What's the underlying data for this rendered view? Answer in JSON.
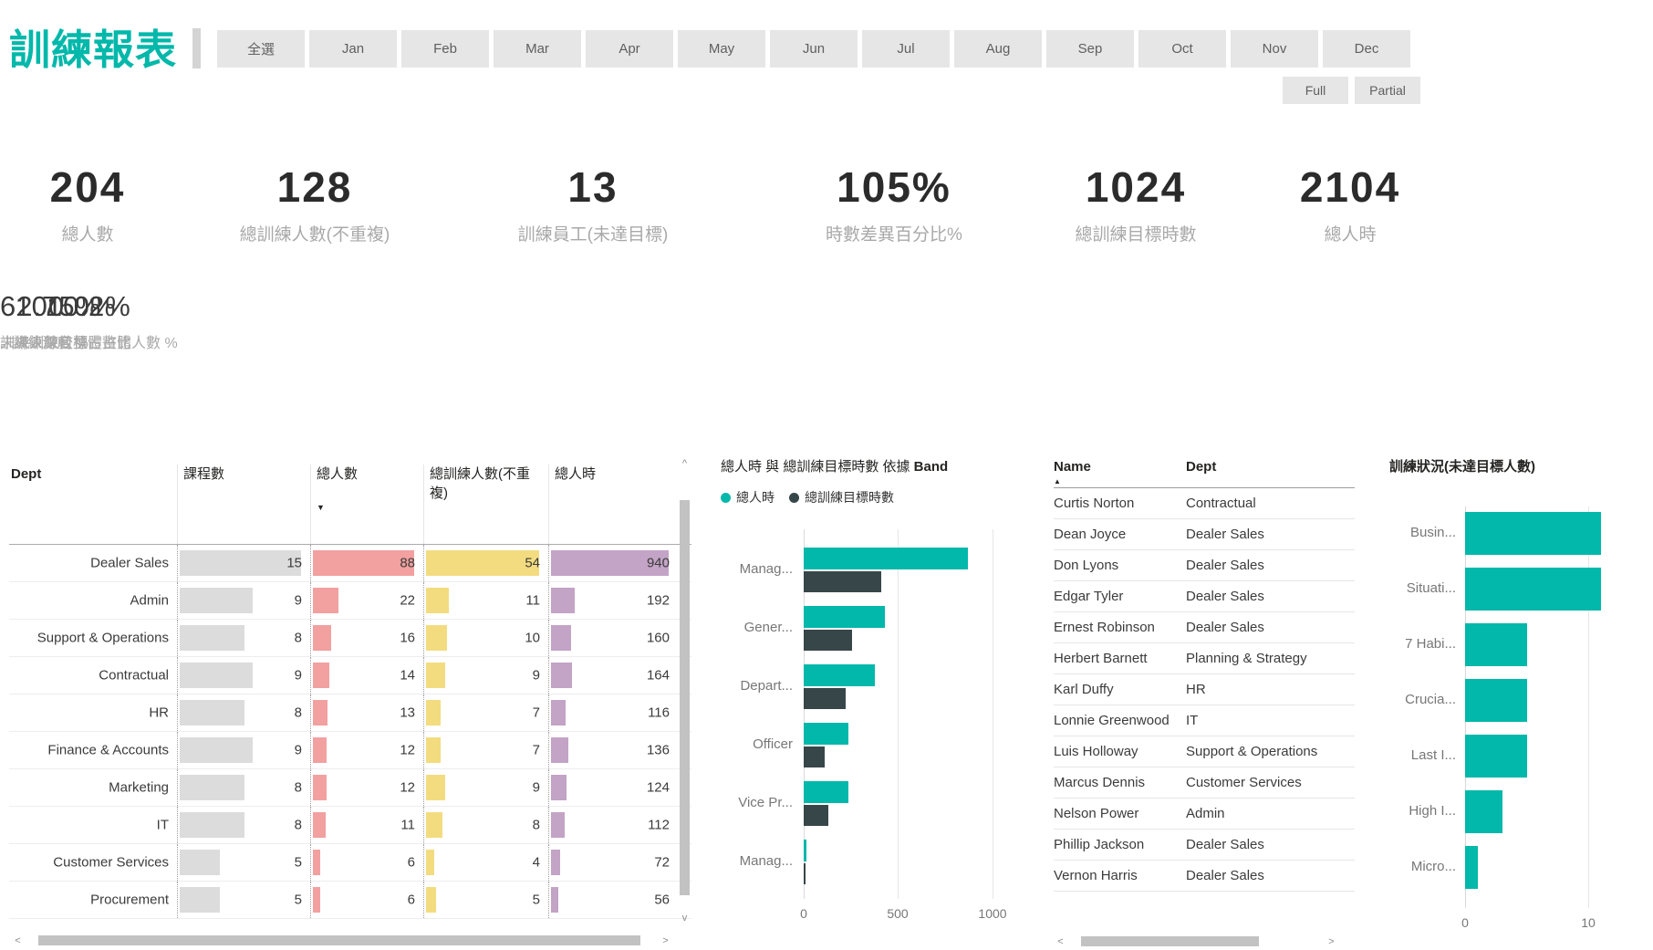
{
  "title": "訓練報表",
  "month_slicer": [
    "全選",
    "Jan",
    "Feb",
    "Mar",
    "Apr",
    "May",
    "Jun",
    "Jul",
    "Aug",
    "Sep",
    "Oct",
    "Nov",
    "Dec"
  ],
  "view_toggle": [
    "Full",
    "Partial"
  ],
  "kpis": [
    {
      "value": "204",
      "label": "總人數"
    },
    {
      "value": "128",
      "label": "總訓練人數(不重複)"
    },
    {
      "value": "13",
      "label": "訓練員工(未達目標)"
    },
    {
      "value": "105%",
      "label": "時數差異百分比%"
    },
    {
      "value": "1024",
      "label": "總訓練目標時數"
    },
    {
      "value": "2104",
      "label": "總人時"
    }
  ],
  "kpis_secondary": [
    {
      "value": "100.0%",
      "label": "訓練人數較整體占比"
    },
    {
      "value": "62.75%",
      "label": "訓練深度 %"
    },
    {
      "value": "10.2%",
      "label": "未來訓練目標占整體人數 %"
    }
  ],
  "dept_table": {
    "columns": [
      "Dept",
      "課程數",
      "總人數",
      "總訓練人數(不重複)",
      "總人時"
    ],
    "sort": {
      "column": "總人數",
      "direction": "desc"
    },
    "rows": [
      {
        "dept": "Dealer Sales",
        "courses": 15,
        "people": 88,
        "trained": 54,
        "hours": 940
      },
      {
        "dept": "Admin",
        "courses": 9,
        "people": 22,
        "trained": 11,
        "hours": 192
      },
      {
        "dept": "Support & Operations",
        "courses": 8,
        "people": 16,
        "trained": 10,
        "hours": 160
      },
      {
        "dept": "Contractual",
        "courses": 9,
        "people": 14,
        "trained": 9,
        "hours": 164
      },
      {
        "dept": "HR",
        "courses": 8,
        "people": 13,
        "trained": 7,
        "hours": 116
      },
      {
        "dept": "Finance & Accounts",
        "courses": 9,
        "people": 12,
        "trained": 7,
        "hours": 136
      },
      {
        "dept": "Marketing",
        "courses": 8,
        "people": 12,
        "trained": 9,
        "hours": 124
      },
      {
        "dept": "IT",
        "courses": 8,
        "people": 11,
        "trained": 8,
        "hours": 112
      },
      {
        "dept": "Customer Services",
        "courses": 5,
        "people": 6,
        "trained": 4,
        "hours": 72
      },
      {
        "dept": "Procurement",
        "courses": 5,
        "people": 6,
        "trained": 5,
        "hours": 56
      }
    ]
  },
  "chart_data": [
    {
      "id": "band_chart",
      "type": "bar",
      "orientation": "horizontal",
      "title_prefix": "總人時 與 總訓練目標時數 依據 ",
      "title_bold": "Band",
      "categories": [
        "Manag...",
        "Gener...",
        "Depart...",
        "Officer",
        "Vice Pr...",
        "Manag..."
      ],
      "series": [
        {
          "name": "總人時",
          "color": "#01B8AA",
          "values": [
            870,
            430,
            375,
            235,
            235,
            15
          ]
        },
        {
          "name": "總訓練目標時數",
          "color": "#374649",
          "values": [
            410,
            255,
            220,
            110,
            130,
            10
          ]
        }
      ],
      "x_ticks": [
        "0",
        "500",
        "1000"
      ],
      "xlim": [
        0,
        1160
      ],
      "grid": true,
      "legend_position": "top"
    },
    {
      "id": "status_chart",
      "type": "bar",
      "orientation": "horizontal",
      "title": "訓練狀況(未達目標人數)",
      "categories": [
        "Busin...",
        "Situati...",
        "7 Habi...",
        "Crucia...",
        "Last I...",
        "High I...",
        "Micro..."
      ],
      "values": [
        11,
        11,
        5,
        5,
        5,
        3,
        1
      ],
      "color": "#01B8AA",
      "x_ticks": [
        "0",
        "10"
      ],
      "xlim": [
        0,
        14
      ],
      "grid": true
    }
  ],
  "name_table": {
    "columns": [
      "Name",
      "Dept"
    ],
    "sort": {
      "column": "Name",
      "direction": "asc"
    },
    "rows": [
      [
        "Curtis Norton",
        "Contractual"
      ],
      [
        "Dean Joyce",
        "Dealer Sales"
      ],
      [
        "Don Lyons",
        "Dealer Sales"
      ],
      [
        "Edgar Tyler",
        "Dealer Sales"
      ],
      [
        "Ernest Robinson",
        "Dealer Sales"
      ],
      [
        "Herbert Barnett",
        "Planning & Strategy"
      ],
      [
        "Karl Duffy",
        "HR"
      ],
      [
        "Lonnie Greenwood",
        "IT"
      ],
      [
        "Luis Holloway",
        "Support & Operations"
      ],
      [
        "Marcus Dennis",
        "Customer Services"
      ],
      [
        "Nelson Power",
        "Admin"
      ],
      [
        "Phillip Jackson",
        "Dealer Sales"
      ],
      [
        "Vernon Harris",
        "Dealer Sales"
      ]
    ]
  },
  "colors": {
    "accent": "#01B8AA",
    "dark_series": "#374649",
    "bar_gray": "#DCDCDC",
    "bar_pink": "#F2A0A0",
    "bar_yellow": "#F3DC7F",
    "bar_purple": "#C3A3C6"
  },
  "scrollbar_glyphs": {
    "up": "^",
    "down": "v",
    "left": "<",
    "right": ">"
  },
  "sort_glyphs": {
    "desc": "▼",
    "asc": "▲"
  }
}
